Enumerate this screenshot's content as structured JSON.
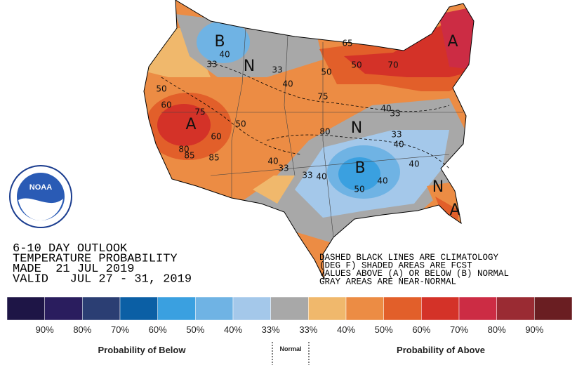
{
  "outlook": {
    "lines": [
      "6-10 DAY OUTLOOK",
      "TEMPERATURE PROBABILITY",
      "MADE  21 JUL 2019",
      "VALID   JUL 27 - 31, 2019"
    ]
  },
  "notes": [
    "DASHED BLACK LINES ARE CLIMATOLOGY",
    "(DEG F) SHADED AREAS ARE FCST",
    "VALUES ABOVE (A) OR BELOW (B) NORMAL",
    "GRAY AREAS ARE NEAR-NORMAL"
  ],
  "logo": {
    "text": "NOAA"
  },
  "map_labels": [
    "B",
    "40",
    "33",
    "N",
    "33",
    "40",
    "65",
    "50",
    "50",
    "70",
    "A",
    "50",
    "60",
    "75",
    "A",
    "60",
    "50",
    "80",
    "85",
    "85",
    "75",
    "80",
    "N",
    "40",
    "33",
    "33",
    "40",
    "40",
    "33",
    "33",
    "40",
    "B",
    "40",
    "50",
    "40",
    "N",
    "A"
  ],
  "legend": {
    "colors": [
      "#1e1546",
      "#2a1d5e",
      "#2b3e73",
      "#0b5fa5",
      "#3aa0e0",
      "#6fb3e4",
      "#a4c8ea",
      "#a8a8a8",
      "#f0b86c",
      "#ec8c44",
      "#e25f2a",
      "#d43228",
      "#cc2c44",
      "#9a2b33",
      "#6a1e22"
    ],
    "labels": [
      "90%",
      "80%",
      "70%",
      "60%",
      "50%",
      "40%",
      "33%",
      "33%",
      "40%",
      "50%",
      "60%",
      "70%",
      "80%",
      "90%"
    ],
    "below": "Probability of Below",
    "normal": "Normal",
    "above": "Probability of Above"
  }
}
